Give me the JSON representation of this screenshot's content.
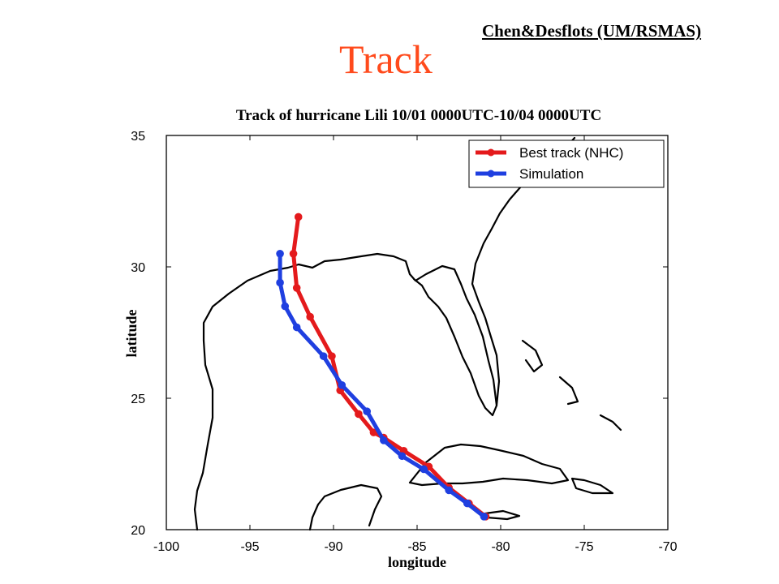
{
  "slide": {
    "title": "Track",
    "credit": "Chen&Desflots (UM/RSMAS)"
  },
  "chart_data": {
    "type": "line",
    "title": "Track of hurricane Lili  10/01 0000UTC-10/04 0000UTC",
    "xlabel": "longitude",
    "ylabel": "latitude",
    "xlim": [
      -100,
      -70
    ],
    "ylim": [
      20,
      35
    ],
    "xticks": [
      -100,
      -95,
      -90,
      -85,
      -80,
      -75,
      -70
    ],
    "yticks": [
      20,
      25,
      30,
      35
    ],
    "grid": false,
    "legend_position": "top-right",
    "series": [
      {
        "name": "Best track (NHC)",
        "color": "#e41a1c",
        "x": [
          -80.9,
          -81.9,
          -83.1,
          -84.3,
          -85.8,
          -87.0,
          -87.6,
          -88.5,
          -89.6,
          -90.1,
          -91.4,
          -92.2,
          -92.4,
          -92.1
        ],
        "y": [
          20.5,
          21.0,
          21.6,
          22.4,
          23.0,
          23.5,
          23.7,
          24.4,
          25.3,
          26.6,
          28.1,
          29.2,
          30.5,
          31.9
        ]
      },
      {
        "name": "Simulation",
        "color": "#1f3fe0",
        "x": [
          -81.0,
          -82.0,
          -83.1,
          -84.6,
          -85.9,
          -87.0,
          -88.0,
          -89.5,
          -90.6,
          -92.2,
          -92.9,
          -93.2,
          -93.2
        ],
        "y": [
          20.5,
          21.0,
          21.5,
          22.3,
          22.8,
          23.4,
          24.5,
          25.5,
          26.6,
          27.7,
          28.5,
          29.4,
          30.5
        ]
      }
    ]
  }
}
